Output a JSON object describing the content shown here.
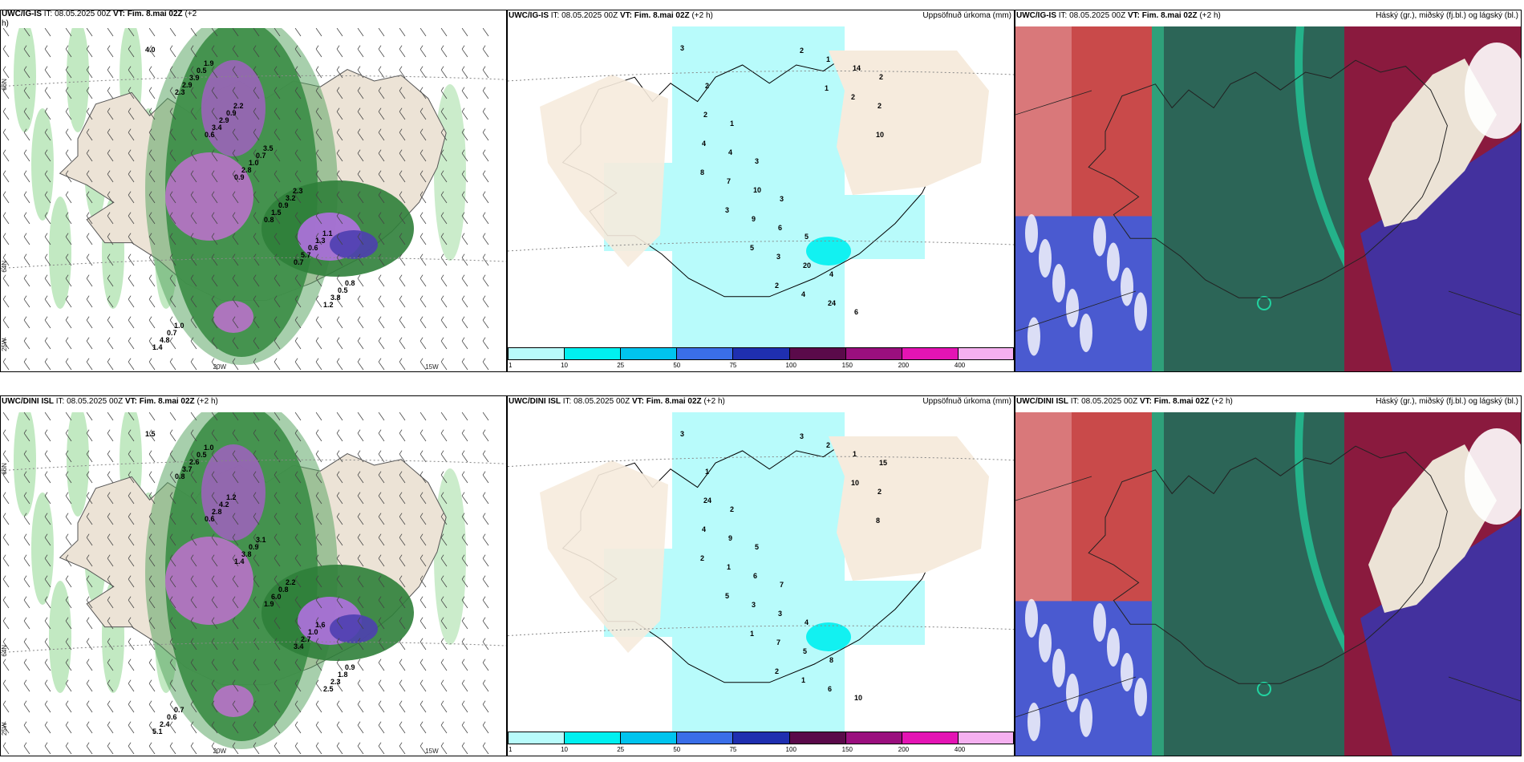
{
  "panels": {
    "top_left": {
      "title_model": "UWC/IG-IS",
      "title_it": "IT: 08.05.2025 00Z",
      "title_vt": "VT: Fim. 8.mai 02Z",
      "title_lead": "(+2",
      "title_lead2": "h)",
      "right_title": ""
    },
    "top_mid": {
      "title_model": "UWC/IG-IS",
      "title_it": "IT: 08.05.2025 00Z",
      "title_vt": "VT: Fim. 8.mai 02Z",
      "title_lead": "(+2 h)",
      "right_title": "Uppsöfnuð úrkoma (mm)"
    },
    "top_right": {
      "title_model": "UWC/IG-IS",
      "title_it": "IT: 08.05.2025 00Z",
      "title_vt": "VT: Fim. 8.mai 02Z",
      "title_lead": "(+2 h)",
      "right_title": "Háský (gr.), miðský (fj.bl.) og lágský (bl.)"
    },
    "bot_left": {
      "title_model": "UWC/DINI ISL",
      "title_it": "IT: 08.05.2025 00Z",
      "title_vt": "VT: Fim. 8.mai 02Z",
      "title_lead": "(+2 h)",
      "right_title": ""
    },
    "bot_mid": {
      "title_model": "UWC/DINI ISL",
      "title_it": "IT: 08.05.2025 00Z",
      "title_vt": "VT: Fim. 8.mai 02Z",
      "title_lead": "(+2 h)",
      "right_title": "Uppsöfnuð úrkoma (mm)"
    },
    "bot_right": {
      "title_model": "UWC/DINI ISL",
      "title_it": "IT: 08.05.2025 00Z",
      "title_vt": "VT: Fim. 8.mai 02Z",
      "title_lead": "(+2 h)",
      "right_title": "Háský (gr.), miðský (fj.bl.) og lágský (bl.)"
    }
  },
  "axis_labels": {
    "lat66": "66N",
    "lat64": "64N",
    "lon25": "25W",
    "lon20": "20W",
    "lon15": "15W"
  },
  "legend": {
    "colors": [
      "#b8fbfb",
      "#00f0f0",
      "#00c4ee",
      "#3a6ee8",
      "#1f2fb0",
      "#5a0a4a",
      "#9a0f7e",
      "#e414b4",
      "#f5b0f0"
    ],
    "ticks": [
      "1",
      "10",
      "25",
      "50",
      "75",
      "100",
      "150",
      "200",
      "400"
    ]
  },
  "precip_labels_top": [
    "4.0",
    "2.3",
    "0.6",
    "0.9",
    "0.8",
    "0.7",
    "1.2",
    "1.4",
    "2.9",
    "3.4",
    "2.8",
    "1.5",
    "5.7",
    "3.8",
    "4.8",
    "3.9",
    "2.9",
    "1.0",
    "0.9",
    "0.6",
    "0.5",
    "0.7",
    "0.5",
    "0.9",
    "0.7",
    "3.2",
    "1.3",
    "0.8",
    "1.0",
    "1.9",
    "2.2",
    "3.5",
    "2.3",
    "1.1"
  ],
  "precip_labels_bot": [
    "1.5",
    "0.8",
    "0.6",
    "1.4",
    "1.9",
    "3.4",
    "2.5",
    "5.1",
    "3.7",
    "2.8",
    "3.8",
    "6.0",
    "2.7",
    "2.3",
    "2.4",
    "2.6",
    "4.2",
    "0.9",
    "0.8",
    "1.0",
    "1.8",
    "0.6",
    "0.5",
    "1.2",
    "3.1",
    "2.2",
    "1.6",
    "0.9",
    "0.7",
    "1.0"
  ],
  "accum_labels_top": [
    "3",
    "2",
    "1",
    "3",
    "3",
    "5",
    "4",
    "6",
    "2",
    "2",
    "4",
    "10",
    "6",
    "20",
    "24",
    "14",
    "2",
    "4",
    "7",
    "9",
    "3",
    "4",
    "1",
    "2",
    "10",
    "8",
    "3",
    "5",
    "2",
    "2",
    "1"
  ],
  "accum_labels_bot": [
    "3",
    "1",
    "2",
    "5",
    "7",
    "4",
    "8",
    "10",
    "15",
    "24",
    "9",
    "6",
    "3",
    "5",
    "6",
    "1",
    "2",
    "4",
    "1",
    "3",
    "7",
    "1",
    "2",
    "10",
    "8",
    "2",
    "5",
    "1",
    "2",
    "3"
  ]
}
